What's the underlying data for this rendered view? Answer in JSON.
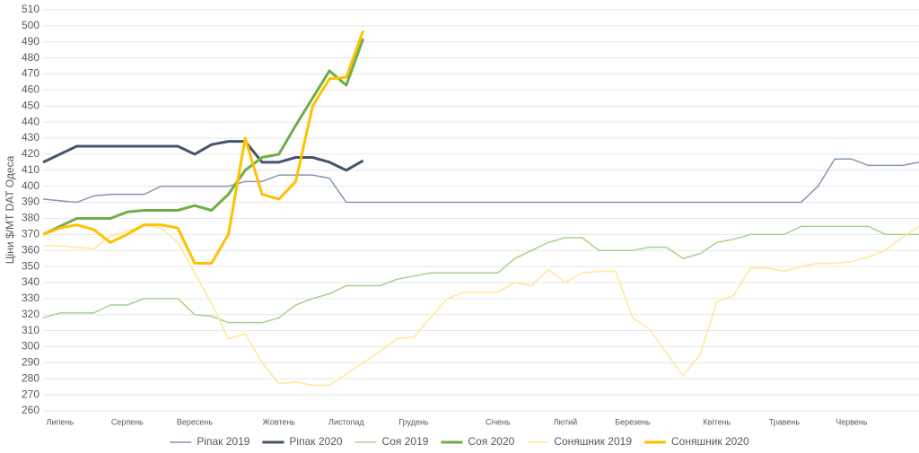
{
  "chart_data": {
    "type": "line",
    "ylabel": "Ціни $/МТ DAT Одеса",
    "categories": [
      null,
      "Липень",
      null,
      null,
      null,
      "Серпень",
      null,
      null,
      null,
      "Вересень",
      null,
      null,
      null,
      null,
      "Жовтень",
      null,
      null,
      null,
      "Листопад",
      null,
      null,
      null,
      "Грудень",
      null,
      null,
      null,
      null,
      "Січень",
      null,
      null,
      null,
      "Лютий",
      null,
      null,
      null,
      "Березень",
      null,
      null,
      null,
      null,
      "Квітень",
      null,
      null,
      null,
      "Травень",
      null,
      null,
      null,
      "Червень",
      null,
      null,
      null,
      null
    ],
    "ylim": [
      260,
      510
    ],
    "yticks": [
      260,
      270,
      280,
      290,
      300,
      310,
      320,
      330,
      340,
      350,
      360,
      370,
      380,
      390,
      400,
      410,
      420,
      430,
      440,
      450,
      460,
      470,
      480,
      490,
      500,
      510
    ],
    "grid": true,
    "legend": "bottom",
    "series": [
      {
        "name": "Ріпак 2019",
        "color": "#8497b0",
        "width": 1.5,
        "values": [
          392,
          391,
          390,
          394,
          395,
          395,
          395,
          400,
          400,
          400,
          400,
          400,
          403,
          403,
          407,
          407,
          407,
          405,
          390,
          390,
          390,
          390,
          390,
          390,
          390,
          390,
          390,
          390,
          390,
          390,
          390,
          390,
          390,
          390,
          390,
          390,
          390,
          390,
          390,
          390,
          390,
          390,
          390,
          390,
          390,
          390,
          400,
          417,
          417,
          413,
          413,
          413,
          415
        ]
      },
      {
        "name": "Ріпак 2020",
        "color": "#44546a",
        "width": 3,
        "values": [
          415,
          420,
          425,
          425,
          425,
          425,
          425,
          425,
          425,
          420,
          426,
          428,
          428,
          415,
          415,
          418,
          418,
          415,
          410,
          416,
          null,
          null,
          null,
          null,
          null,
          null,
          null,
          null,
          null,
          null,
          null,
          null,
          null,
          null,
          null,
          null,
          null,
          null,
          null,
          null,
          null,
          null,
          null,
          null,
          null,
          null,
          null,
          null,
          null,
          null,
          null,
          null,
          null
        ]
      },
      {
        "name": "Соя 2019",
        "color": "#a9d18e",
        "width": 1.5,
        "values": [
          318,
          321,
          321,
          321,
          326,
          326,
          330,
          330,
          330,
          320,
          319,
          315,
          315,
          315,
          318,
          326,
          330,
          333,
          338,
          338,
          338,
          342,
          344,
          346,
          346,
          346,
          346,
          346,
          355,
          360,
          365,
          368,
          368,
          360,
          360,
          360,
          362,
          362,
          355,
          358,
          365,
          367,
          370,
          370,
          370,
          375,
          375,
          375,
          375,
          375,
          370,
          370,
          370
        ]
      },
      {
        "name": "Соя 2020",
        "color": "#70ad47",
        "width": 3,
        "values": [
          370,
          375,
          380,
          380,
          380,
          384,
          385,
          385,
          385,
          388,
          385,
          395,
          410,
          418,
          420,
          438,
          455,
          472,
          463,
          492,
          null,
          null,
          null,
          null,
          null,
          null,
          null,
          null,
          null,
          null,
          null,
          null,
          null,
          null,
          null,
          null,
          null,
          null,
          null,
          null,
          null,
          null,
          null,
          null,
          null,
          null,
          null,
          null,
          null,
          null,
          null,
          null,
          null
        ]
      },
      {
        "name": "Соняшник 2019",
        "color": "#ffe699",
        "width": 1.5,
        "values": [
          363,
          363,
          362,
          361,
          369,
          372,
          376,
          374,
          365,
          346,
          327,
          305,
          308,
          290,
          277,
          278,
          276,
          276,
          283,
          290,
          297,
          305,
          306,
          318,
          330,
          334,
          334,
          334,
          340,
          338,
          348,
          340,
          346,
          347,
          347,
          318,
          311,
          296,
          282,
          295,
          328,
          332,
          349,
          349,
          347,
          350,
          352,
          352,
          353,
          356,
          360,
          368,
          375
        ]
      },
      {
        "name": "Соняшник 2020",
        "color": "#ffc000",
        "width": 3,
        "values": [
          370,
          374,
          376,
          373,
          365,
          370,
          376,
          376,
          374,
          352,
          352,
          370,
          430,
          395,
          392,
          403,
          450,
          467,
          468,
          497,
          null,
          null,
          null,
          null,
          null,
          null,
          null,
          null,
          null,
          null,
          null,
          null,
          null,
          null,
          null,
          null,
          null,
          null,
          null,
          null,
          null,
          null,
          null,
          null,
          null,
          null,
          null,
          null,
          null,
          null,
          null,
          null,
          null
        ]
      }
    ]
  }
}
